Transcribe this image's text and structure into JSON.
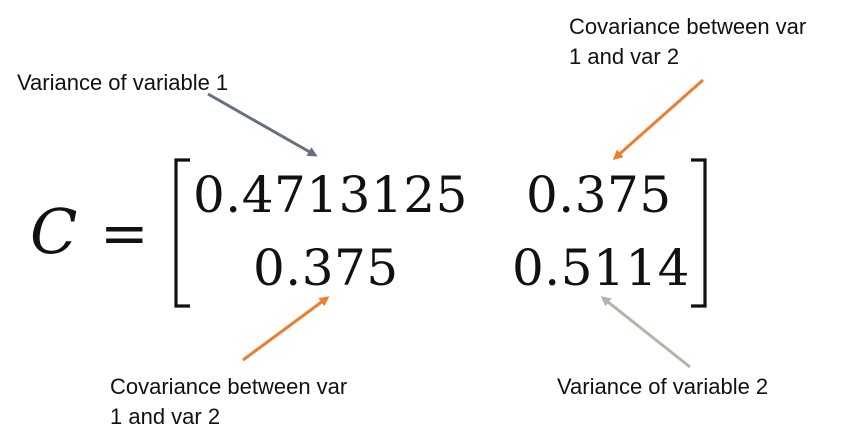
{
  "annotations": {
    "top_left": "Variance of variable 1",
    "top_right_line1": "Covariance between var",
    "top_right_line2": "1 and var 2",
    "bottom_left_line1": "Covariance between var",
    "bottom_left_line2": "1 and var 2",
    "bottom_right": "Variance of variable 2"
  },
  "equation": {
    "symbol": "C",
    "equals": "=",
    "matrix": {
      "r1c1": "0.4713125",
      "r1c2": "0.375",
      "r2c1": "0.375",
      "r2c2": "0.5114"
    }
  },
  "colors": {
    "text": "#111111",
    "arrow_variance_1": "#66707e",
    "arrow_covariance": "#ed7d31",
    "arrow_variance_2": "#b0b6a6"
  }
}
